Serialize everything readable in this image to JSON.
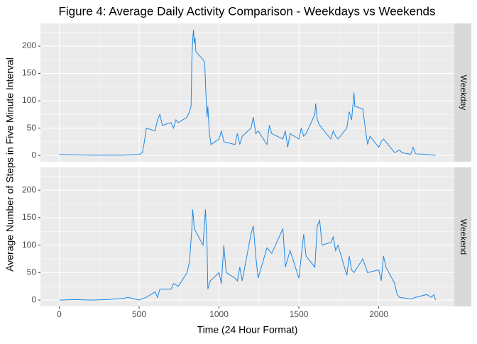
{
  "chart_data": {
    "type": "line",
    "title": "Figure 4: Average Daily Activity Comparison - Weekdays vs Weekends",
    "x_label": "Time (24 Hour Format)",
    "y_label": "Average Number of Steps in Five Minute Interval",
    "xlim": [
      -117.75,
      2472.75
    ],
    "xticks": [
      0,
      500,
      1000,
      1500,
      2000
    ],
    "x_minor_ticks": [
      250,
      750,
      1250,
      1750,
      2250
    ],
    "ylim": [
      -11.5,
      241.5
    ],
    "yticks": [
      0,
      50,
      100,
      150,
      200
    ],
    "y_minor_ticks": [
      25,
      75,
      125,
      175,
      225
    ],
    "grid": true,
    "series": [
      {
        "name": "Weekday",
        "color": "#1e88e5",
        "x": [
          0,
          100,
          200,
          300,
          400,
          500,
          520,
          530,
          545,
          600,
          615,
          630,
          645,
          700,
          715,
          730,
          745,
          800,
          815,
          825,
          830,
          835,
          840,
          845,
          850,
          855,
          900,
          910,
          920,
          925,
          930,
          940,
          950,
          1000,
          1015,
          1030,
          1100,
          1115,
          1130,
          1145,
          1200,
          1215,
          1230,
          1245,
          1300,
          1315,
          1330,
          1400,
          1415,
          1430,
          1445,
          1500,
          1515,
          1530,
          1545,
          1600,
          1605,
          1615,
          1630,
          1700,
          1715,
          1730,
          1745,
          1800,
          1815,
          1830,
          1845,
          1850,
          1900,
          1920,
          1930,
          1945,
          2000,
          2015,
          2030,
          2100,
          2130,
          2145,
          2200,
          2215,
          2230,
          2300,
          2330,
          2355
        ],
        "values": [
          2,
          1,
          0.5,
          0.5,
          0.5,
          2,
          5,
          20,
          50,
          45,
          65,
          75,
          55,
          60,
          50,
          65,
          60,
          70,
          80,
          90,
          175,
          210,
          230,
          205,
          215,
          190,
          175,
          170,
          100,
          70,
          90,
          40,
          20,
          30,
          45,
          25,
          20,
          40,
          20,
          35,
          50,
          70,
          40,
          45,
          20,
          55,
          40,
          30,
          45,
          15,
          40,
          30,
          50,
          35,
          40,
          75,
          95,
          65,
          55,
          30,
          45,
          35,
          30,
          50,
          80,
          65,
          115,
          90,
          85,
          40,
          20,
          35,
          15,
          25,
          30,
          5,
          10,
          5,
          2,
          15,
          3,
          2,
          1,
          0
        ]
      },
      {
        "name": "Weekend",
        "color": "#1e88e5",
        "x": [
          0,
          100,
          200,
          300,
          400,
          430,
          500,
          545,
          600,
          615,
          630,
          700,
          715,
          745,
          800,
          815,
          830,
          835,
          840,
          845,
          900,
          915,
          925,
          930,
          945,
          1000,
          1015,
          1030,
          1045,
          1100,
          1115,
          1130,
          1145,
          1200,
          1215,
          1230,
          1245,
          1300,
          1330,
          1400,
          1415,
          1445,
          1500,
          1515,
          1530,
          1545,
          1600,
          1615,
          1630,
          1645,
          1700,
          1715,
          1730,
          1745,
          1800,
          1815,
          1830,
          1845,
          1900,
          1930,
          2000,
          2015,
          2030,
          2045,
          2100,
          2115,
          2130,
          2200,
          2230,
          2300,
          2330,
          2345,
          2355
        ],
        "values": [
          0,
          1,
          0,
          1,
          3,
          5,
          0,
          5,
          15,
          5,
          20,
          20,
          30,
          25,
          50,
          70,
          130,
          165,
          150,
          130,
          100,
          165,
          100,
          20,
          35,
          50,
          30,
          100,
          50,
          40,
          35,
          60,
          35,
          120,
          135,
          80,
          40,
          95,
          85,
          130,
          60,
          90,
          40,
          80,
          120,
          80,
          60,
          135,
          145,
          100,
          105,
          115,
          90,
          100,
          45,
          80,
          55,
          50,
          75,
          50,
          55,
          35,
          80,
          60,
          30,
          10,
          5,
          2,
          5,
          10,
          5,
          10,
          0
        ]
      }
    ]
  }
}
